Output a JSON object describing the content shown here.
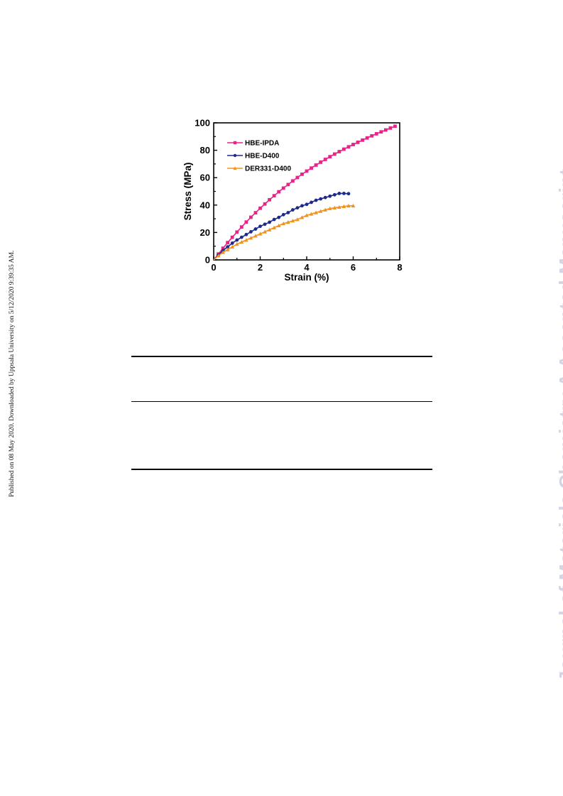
{
  "side_note": "Published on 08 May 2020. Downloaded by Uppsala University on 5/12/2020 9:39:35 AM.",
  "watermark": "Journal of Materials Chemistry A Accepted Manuscript",
  "chart_data": {
    "type": "line",
    "xlabel": "Strain (%)",
    "ylabel": "Stress (MPa)",
    "xlim": [
      0,
      8
    ],
    "ylim": [
      0,
      100
    ],
    "xticks": [
      "0",
      "2",
      "4",
      "6",
      "8"
    ],
    "yticks": [
      "0",
      "20",
      "40",
      "60",
      "80",
      "100"
    ],
    "legend_position": "top-left",
    "series": [
      {
        "name": "HBE-IPDA",
        "color": "#e8238a",
        "marker": "square",
        "x": [
          0,
          0.2,
          0.4,
          0.6,
          0.8,
          1.0,
          1.2,
          1.4,
          1.6,
          1.8,
          2.0,
          2.2,
          2.4,
          2.6,
          2.8,
          3.0,
          3.2,
          3.4,
          3.6,
          3.8,
          4.0,
          4.2,
          4.4,
          4.6,
          4.8,
          5.0,
          5.2,
          5.4,
          5.6,
          5.8,
          6.0,
          6.2,
          6.4,
          6.6,
          6.8,
          7.0,
          7.2,
          7.4,
          7.6,
          7.8
        ],
        "y": [
          0,
          4.3,
          8.5,
          12.6,
          16.5,
          20.3,
          24.0,
          27.6,
          31.1,
          34.4,
          37.7,
          40.8,
          43.9,
          46.8,
          49.7,
          52.4,
          55.0,
          57.6,
          60.1,
          62.5,
          64.8,
          67.0,
          69.2,
          71.3,
          73.3,
          75.3,
          77.2,
          79.0,
          80.8,
          82.5,
          84.2,
          85.8,
          87.4,
          89.0,
          90.5,
          92.0,
          93.4,
          94.8,
          96.2,
          97.5
        ]
      },
      {
        "name": "HBE-D400",
        "color": "#1d2a8c",
        "marker": "circle",
        "x": [
          0,
          0.2,
          0.4,
          0.6,
          0.8,
          1.0,
          1.2,
          1.4,
          1.6,
          1.8,
          2.0,
          2.2,
          2.4,
          2.6,
          2.8,
          3.0,
          3.2,
          3.4,
          3.6,
          3.8,
          4.0,
          4.2,
          4.4,
          4.6,
          4.8,
          5.0,
          5.2,
          5.4,
          5.6,
          5.8
        ],
        "y": [
          0,
          3.5,
          6.8,
          9.5,
          12.2,
          14.5,
          16.5,
          18.5,
          20.5,
          22.5,
          24.5,
          26.0,
          27.5,
          29.5,
          31.0,
          33.0,
          34.5,
          36.5,
          38.0,
          39.5,
          40.5,
          42.0,
          43.5,
          44.5,
          45.5,
          46.5,
          47.5,
          48.5,
          48.5,
          48.3
        ]
      },
      {
        "name": "DER331-D400",
        "color": "#f0931e",
        "marker": "triangle",
        "x": [
          0,
          0.2,
          0.4,
          0.6,
          0.8,
          1.0,
          1.2,
          1.4,
          1.6,
          1.8,
          2.0,
          2.2,
          2.4,
          2.6,
          2.8,
          3.0,
          3.2,
          3.4,
          3.6,
          3.8,
          4.0,
          4.2,
          4.4,
          4.6,
          4.8,
          5.0,
          5.2,
          5.4,
          5.6,
          5.8,
          6.0
        ],
        "y": [
          0,
          3.0,
          5.5,
          7.5,
          9.5,
          11.5,
          13.0,
          14.5,
          16.0,
          17.5,
          19.0,
          20.5,
          22.0,
          23.5,
          25.0,
          26.5,
          27.5,
          28.5,
          29.5,
          31.0,
          32.5,
          33.5,
          34.5,
          35.5,
          36.5,
          37.5,
          38.0,
          38.5,
          39.0,
          39.5,
          39.5
        ]
      }
    ]
  }
}
